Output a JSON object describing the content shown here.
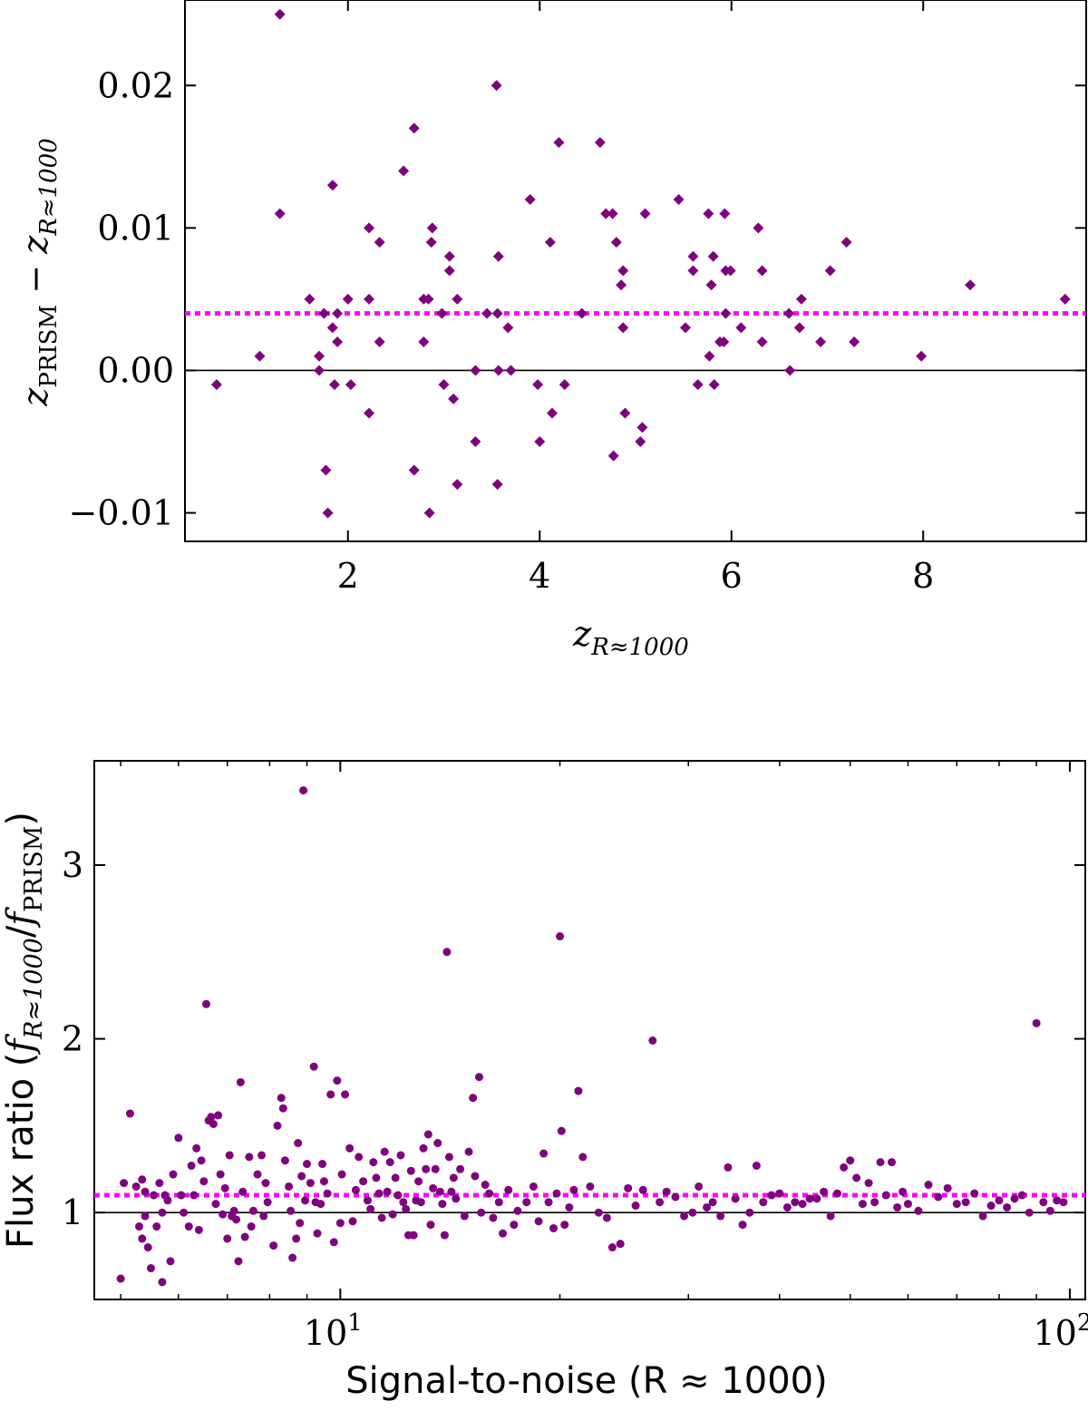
{
  "colors": {
    "points": "#800080",
    "median_line": "#ff00ff",
    "reference_line": "#000000"
  },
  "chart_data": [
    {
      "type": "scatter",
      "marker": "diamond",
      "xlabel": {
        "main": "z",
        "sub": "R≈1000"
      },
      "ylabel": {
        "main1": "z",
        "sub1": "PRISM",
        "op": " − ",
        "main2": "z",
        "sub2": "R≈1000"
      },
      "xlim": [
        0.3,
        9.7
      ],
      "ylim": [
        -0.012,
        0.026
      ],
      "xticks": [
        2,
        4,
        6,
        8
      ],
      "xtick_labels": [
        "2",
        "4",
        "6",
        "8"
      ],
      "yticks": [
        -0.01,
        0.0,
        0.01,
        0.02
      ],
      "ytick_labels": [
        "−0.01",
        "0.00",
        "0.01",
        "0.02"
      ],
      "median_line": 0.004,
      "reference_line": 0.0,
      "points": [
        [
          0.63,
          -0.001
        ],
        [
          1.08,
          0.001
        ],
        [
          1.29,
          0.025
        ],
        [
          1.29,
          0.011
        ],
        [
          1.6,
          0.005
        ],
        [
          1.7,
          0.001
        ],
        [
          1.7,
          0.0
        ],
        [
          1.75,
          0.004
        ],
        [
          1.77,
          -0.007
        ],
        [
          1.79,
          -0.01
        ],
        [
          1.84,
          0.013
        ],
        [
          1.84,
          0.003
        ],
        [
          1.86,
          -0.001
        ],
        [
          1.89,
          0.004
        ],
        [
          1.89,
          0.002
        ],
        [
          2.0,
          0.005
        ],
        [
          2.03,
          -0.001
        ],
        [
          2.22,
          0.01
        ],
        [
          2.22,
          0.005
        ],
        [
          2.22,
          -0.003
        ],
        [
          2.33,
          0.009
        ],
        [
          2.33,
          0.002
        ],
        [
          2.58,
          0.014
        ],
        [
          2.69,
          0.017
        ],
        [
          2.69,
          -0.007
        ],
        [
          2.79,
          0.002
        ],
        [
          2.79,
          0.005
        ],
        [
          2.84,
          0.005
        ],
        [
          2.85,
          -0.01
        ],
        [
          2.87,
          0.009
        ],
        [
          2.88,
          0.01
        ],
        [
          2.98,
          0.004
        ],
        [
          3.0,
          -0.001
        ],
        [
          3.06,
          0.008
        ],
        [
          3.06,
          0.007
        ],
        [
          3.1,
          -0.002
        ],
        [
          3.14,
          0.005
        ],
        [
          3.14,
          -0.008
        ],
        [
          3.33,
          -0.005
        ],
        [
          3.33,
          0.0
        ],
        [
          3.45,
          0.004
        ],
        [
          3.55,
          0.02
        ],
        [
          3.56,
          0.004
        ],
        [
          3.56,
          -0.008
        ],
        [
          3.57,
          0.008
        ],
        [
          3.57,
          0.0
        ],
        [
          3.67,
          0.003
        ],
        [
          3.7,
          0.0
        ],
        [
          3.9,
          0.012
        ],
        [
          3.98,
          -0.001
        ],
        [
          4.0,
          -0.005
        ],
        [
          4.11,
          0.009
        ],
        [
          4.13,
          -0.003
        ],
        [
          4.2,
          0.016
        ],
        [
          4.26,
          -0.001
        ],
        [
          4.44,
          0.004
        ],
        [
          4.63,
          0.016
        ],
        [
          4.69,
          0.011
        ],
        [
          4.76,
          0.011
        ],
        [
          4.77,
          -0.006
        ],
        [
          4.8,
          0.009
        ],
        [
          4.85,
          0.006
        ],
        [
          4.87,
          0.007
        ],
        [
          4.87,
          0.003
        ],
        [
          4.89,
          -0.003
        ],
        [
          5.05,
          -0.005
        ],
        [
          5.07,
          -0.004
        ],
        [
          5.1,
          0.011
        ],
        [
          5.45,
          0.012
        ],
        [
          5.52,
          0.003
        ],
        [
          5.6,
          0.008
        ],
        [
          5.6,
          0.007
        ],
        [
          5.65,
          -0.001
        ],
        [
          5.76,
          0.011
        ],
        [
          5.77,
          0.001
        ],
        [
          5.79,
          0.006
        ],
        [
          5.81,
          0.008
        ],
        [
          5.82,
          -0.001
        ],
        [
          5.88,
          0.002
        ],
        [
          5.92,
          0.002
        ],
        [
          5.93,
          0.011
        ],
        [
          5.94,
          0.004
        ],
        [
          5.94,
          0.007
        ],
        [
          5.99,
          0.007
        ],
        [
          6.1,
          0.003
        ],
        [
          6.28,
          0.01
        ],
        [
          6.32,
          0.007
        ],
        [
          6.32,
          0.002
        ],
        [
          6.6,
          0.004
        ],
        [
          6.61,
          0.0
        ],
        [
          6.71,
          0.003
        ],
        [
          6.73,
          0.005
        ],
        [
          6.93,
          0.002
        ],
        [
          7.03,
          0.007
        ],
        [
          7.2,
          0.009
        ],
        [
          7.28,
          0.002
        ],
        [
          7.98,
          0.001
        ],
        [
          8.49,
          0.006
        ],
        [
          9.48,
          0.005
        ]
      ]
    },
    {
      "type": "scatter",
      "marker": "circle",
      "xscale": "log",
      "xlabel": "Signal-to-noise (R ≈ 1000)",
      "ylabel": {
        "prefix": "Flux ratio (",
        "f1": "f",
        "sub1": "R≈1000",
        "slash": "/",
        "f2": "f",
        "sub2": "PRISM",
        "suffix": ")"
      },
      "xlim": [
        4.6,
        105
      ],
      "ylim": [
        0.5,
        3.6
      ],
      "xticks": [
        10,
        100
      ],
      "xtick_labels": [
        {
          "base": "10",
          "exp": "1"
        },
        {
          "base": "10",
          "exp": "2"
        }
      ],
      "yticks": [
        1,
        2,
        3
      ],
      "ytick_labels": [
        "1",
        "2",
        "3"
      ],
      "median_line": 1.1,
      "reference_line": 1.0,
      "points": [
        [
          5.0,
          0.62
        ],
        [
          5.05,
          1.17
        ],
        [
          5.15,
          1.57
        ],
        [
          5.25,
          1.15
        ],
        [
          5.3,
          0.92
        ],
        [
          5.35,
          0.85
        ],
        [
          5.35,
          1.19
        ],
        [
          5.4,
          1.12
        ],
        [
          5.4,
          0.98
        ],
        [
          5.45,
          0.8
        ],
        [
          5.5,
          0.68
        ],
        [
          5.55,
          1.1
        ],
        [
          5.6,
          0.92
        ],
        [
          5.65,
          1.17
        ],
        [
          5.7,
          1.0
        ],
        [
          5.7,
          0.6
        ],
        [
          5.75,
          1.1
        ],
        [
          5.8,
          1.07
        ],
        [
          5.85,
          0.72
        ],
        [
          5.9,
          1.22
        ],
        [
          6.0,
          1.43
        ],
        [
          6.05,
          1.1
        ],
        [
          6.1,
          1.0
        ],
        [
          6.2,
          0.92
        ],
        [
          6.25,
          1.27
        ],
        [
          6.3,
          1.1
        ],
        [
          6.35,
          1.37
        ],
        [
          6.4,
          0.9
        ],
        [
          6.45,
          1.3
        ],
        [
          6.5,
          1.18
        ],
        [
          6.55,
          2.2
        ],
        [
          6.6,
          1.53
        ],
        [
          6.65,
          1.55
        ],
        [
          6.7,
          1.51
        ],
        [
          6.75,
          1.05
        ],
        [
          6.8,
          1.56
        ],
        [
          6.85,
          1.22
        ],
        [
          6.9,
          0.99
        ],
        [
          6.95,
          1.14
        ],
        [
          7.0,
          0.85
        ],
        [
          7.05,
          1.33
        ],
        [
          7.1,
          0.98
        ],
        [
          7.15,
          1.01
        ],
        [
          7.2,
          0.96
        ],
        [
          7.25,
          0.72
        ],
        [
          7.3,
          1.75
        ],
        [
          7.35,
          1.12
        ],
        [
          7.4,
          0.86
        ],
        [
          7.5,
          1.32
        ],
        [
          7.55,
          0.92
        ],
        [
          7.6,
          1.01
        ],
        [
          7.7,
          1.22
        ],
        [
          7.8,
          1.33
        ],
        [
          7.85,
          0.98
        ],
        [
          7.9,
          1.17
        ],
        [
          7.95,
          1.06
        ],
        [
          8.1,
          0.81
        ],
        [
          8.2,
          1.5
        ],
        [
          8.3,
          1.66
        ],
        [
          8.35,
          1.6
        ],
        [
          8.4,
          1.3
        ],
        [
          8.5,
          1.15
        ],
        [
          8.55,
          1.01
        ],
        [
          8.6,
          0.74
        ],
        [
          8.7,
          0.85
        ],
        [
          8.75,
          1.4
        ],
        [
          8.8,
          0.94
        ],
        [
          8.85,
          1.21
        ],
        [
          8.9,
          3.43
        ],
        [
          8.95,
          1.07
        ],
        [
          9.0,
          1.28
        ],
        [
          9.1,
          1.17
        ],
        [
          9.2,
          1.84
        ],
        [
          9.25,
          1.06
        ],
        [
          9.3,
          0.88
        ],
        [
          9.4,
          1.05
        ],
        [
          9.45,
          1.28
        ],
        [
          9.5,
          1.18
        ],
        [
          9.6,
          1.11
        ],
        [
          9.7,
          1.68
        ],
        [
          9.8,
          0.83
        ],
        [
          9.9,
          1.76
        ],
        [
          10.0,
          0.94
        ],
        [
          10.05,
          1.22
        ],
        [
          10.15,
          1.68
        ],
        [
          10.3,
          1.37
        ],
        [
          10.4,
          0.95
        ],
        [
          10.5,
          1.13
        ],
        [
          10.6,
          1.32
        ],
        [
          10.75,
          1.18
        ],
        [
          10.9,
          1.07
        ],
        [
          11.0,
          1.02
        ],
        [
          11.1,
          1.29
        ],
        [
          11.2,
          1.2
        ],
        [
          11.3,
          1.11
        ],
        [
          11.4,
          0.97
        ],
        [
          11.5,
          1.35
        ],
        [
          11.6,
          1.12
        ],
        [
          11.7,
          1.29
        ],
        [
          11.8,
          0.99
        ],
        [
          11.9,
          1.2
        ],
        [
          12.0,
          1.1
        ],
        [
          12.1,
          1.33
        ],
        [
          12.2,
          1.06
        ],
        [
          12.3,
          1.02
        ],
        [
          12.4,
          0.87
        ],
        [
          12.5,
          1.24
        ],
        [
          12.6,
          0.87
        ],
        [
          12.7,
          1.07
        ],
        [
          12.8,
          1.18
        ],
        [
          12.9,
          1.06
        ],
        [
          13.0,
          1.37
        ],
        [
          13.1,
          1.25
        ],
        [
          13.2,
          1.45
        ],
        [
          13.3,
          0.93
        ],
        [
          13.4,
          1.14
        ],
        [
          13.5,
          1.25
        ],
        [
          13.6,
          1.4
        ],
        [
          13.7,
          1.12
        ],
        [
          13.8,
          1.05
        ],
        [
          13.9,
          0.87
        ],
        [
          14.0,
          2.5
        ],
        [
          14.1,
          1.32
        ],
        [
          14.2,
          1.12
        ],
        [
          14.3,
          1.2
        ],
        [
          14.4,
          1.08
        ],
        [
          14.6,
          1.25
        ],
        [
          14.8,
          0.98
        ],
        [
          15.0,
          1.35
        ],
        [
          15.2,
          1.66
        ],
        [
          15.3,
          1.21
        ],
        [
          15.5,
          1.78
        ],
        [
          15.6,
          1.0
        ],
        [
          15.8,
          1.16
        ],
        [
          16.0,
          1.11
        ],
        [
          16.2,
          0.97
        ],
        [
          16.5,
          1.06
        ],
        [
          16.7,
          0.88
        ],
        [
          17.0,
          1.13
        ],
        [
          17.3,
          0.93
        ],
        [
          17.5,
          1.01
        ],
        [
          18.0,
          1.06
        ],
        [
          18.4,
          1.15
        ],
        [
          18.7,
          0.95
        ],
        [
          19.0,
          1.34
        ],
        [
          19.3,
          1.06
        ],
        [
          19.6,
          0.91
        ],
        [
          19.8,
          1.11
        ],
        [
          20.0,
          2.59
        ],
        [
          20.1,
          1.47
        ],
        [
          20.3,
          0.93
        ],
        [
          20.6,
          1.03
        ],
        [
          20.9,
          1.13
        ],
        [
          21.2,
          1.7
        ],
        [
          21.5,
          1.32
        ],
        [
          22.0,
          1.15
        ],
        [
          22.6,
          1.0
        ],
        [
          23.2,
          0.97
        ],
        [
          23.6,
          0.8
        ],
        [
          24.2,
          0.82
        ],
        [
          24.8,
          1.14
        ],
        [
          25.4,
          1.04
        ],
        [
          26.0,
          1.13
        ],
        [
          26.8,
          1.99
        ],
        [
          27.4,
          1.06
        ],
        [
          28.0,
          1.12
        ],
        [
          28.8,
          1.09
        ],
        [
          29.6,
          0.98
        ],
        [
          30.4,
          1.0
        ],
        [
          31.0,
          1.15
        ],
        [
          31.8,
          1.03
        ],
        [
          32.4,
          1.06
        ],
        [
          33.2,
          0.98
        ],
        [
          34.0,
          1.26
        ],
        [
          34.8,
          1.08
        ],
        [
          35.6,
          0.93
        ],
        [
          36.4,
          1.0
        ],
        [
          37.2,
          1.27
        ],
        [
          38.0,
          1.06
        ],
        [
          39.0,
          1.1
        ],
        [
          40.0,
          1.11
        ],
        [
          41.0,
          1.03
        ],
        [
          42.0,
          1.06
        ],
        [
          43.0,
          1.05
        ],
        [
          44.0,
          1.08
        ],
        [
          45.0,
          1.08
        ],
        [
          46.0,
          1.12
        ],
        [
          47.0,
          0.98
        ],
        [
          48.0,
          1.11
        ],
        [
          49.0,
          1.26
        ],
        [
          50.0,
          1.3
        ],
        [
          51.0,
          1.2
        ],
        [
          52.0,
          1.05
        ],
        [
          53.0,
          1.17
        ],
        [
          54.0,
          1.06
        ],
        [
          55.0,
          1.29
        ],
        [
          56.0,
          1.1
        ],
        [
          57.0,
          1.29
        ],
        [
          58.0,
          1.03
        ],
        [
          59.0,
          1.12
        ],
        [
          60.0,
          1.05
        ],
        [
          62.0,
          1.01
        ],
        [
          64.0,
          1.16
        ],
        [
          66.0,
          1.09
        ],
        [
          68.0,
          1.14
        ],
        [
          70.0,
          1.05
        ],
        [
          72.0,
          1.06
        ],
        [
          74.0,
          1.11
        ],
        [
          76.0,
          0.98
        ],
        [
          78.0,
          1.04
        ],
        [
          80.0,
          1.07
        ],
        [
          82.0,
          1.03
        ],
        [
          84.0,
          1.08
        ],
        [
          86.0,
          1.1
        ],
        [
          88.0,
          1.0
        ],
        [
          90.0,
          2.09
        ],
        [
          92.0,
          1.06
        ],
        [
          94.0,
          1.01
        ],
        [
          96.0,
          1.07
        ],
        [
          98.0,
          1.06
        ]
      ]
    }
  ]
}
